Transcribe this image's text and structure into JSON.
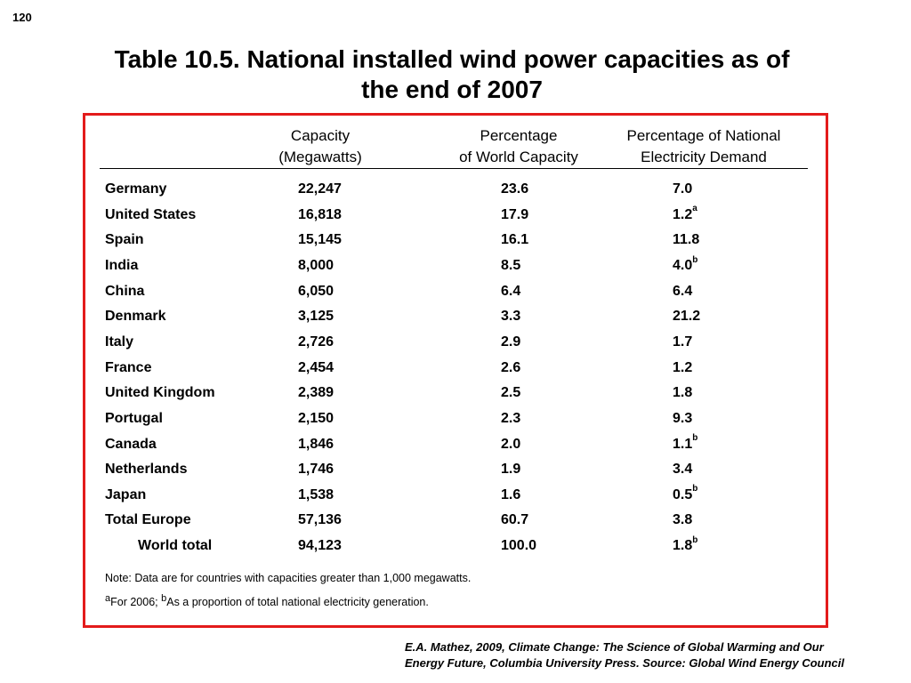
{
  "page_number": "120",
  "title_line1": "Table 10.5.  National installed wind power capacities as of",
  "title_line2": "the end of 2007",
  "headers": {
    "capacity_line1": "Capacity",
    "capacity_line2": "(Megawatts)",
    "percentage_line1": "Percentage",
    "percentage_line2": "of World Capacity",
    "national_line1": "Percentage of National",
    "national_line2": "Electricity Demand"
  },
  "rows": [
    {
      "country": "Germany",
      "capacity": "22,247",
      "world_pct": "23.6",
      "national_pct": "7.0",
      "footnote": ""
    },
    {
      "country": "United States",
      "capacity": "16,818",
      "world_pct": "17.9",
      "national_pct": "1.2",
      "footnote": "a"
    },
    {
      "country": "Spain",
      "capacity": "15,145",
      "world_pct": "16.1",
      "national_pct": "11.8",
      "footnote": ""
    },
    {
      "country": "India",
      "capacity": "8,000",
      "world_pct": "8.5",
      "national_pct": "4.0",
      "footnote": "b"
    },
    {
      "country": "China",
      "capacity": "6,050",
      "world_pct": "6.4",
      "national_pct": "6.4",
      "footnote": ""
    },
    {
      "country": "Denmark",
      "capacity": "3,125",
      "world_pct": "3.3",
      "national_pct": "21.2",
      "footnote": ""
    },
    {
      "country": "Italy",
      "capacity": "2,726",
      "world_pct": "2.9",
      "national_pct": "1.7",
      "footnote": ""
    },
    {
      "country": "France",
      "capacity": "2,454",
      "world_pct": "2.6",
      "national_pct": "1.2",
      "footnote": ""
    },
    {
      "country": "United Kingdom",
      "capacity": "2,389",
      "world_pct": "2.5",
      "national_pct": "1.8",
      "footnote": ""
    },
    {
      "country": "Portugal",
      "capacity": "2,150",
      "world_pct": "2.3",
      "national_pct": "9.3",
      "footnote": ""
    },
    {
      "country": "Canada",
      "capacity": "1,846",
      "world_pct": "2.0",
      "national_pct": "1.1",
      "footnote": "b"
    },
    {
      "country": "Netherlands",
      "capacity": "1,746",
      "world_pct": "1.9",
      "national_pct": "3.4",
      "footnote": ""
    },
    {
      "country": "Japan",
      "capacity": "1,538",
      "world_pct": "1.6",
      "national_pct": "0.5",
      "footnote": "b"
    },
    {
      "country": "Total Europe",
      "capacity": "57,136",
      "world_pct": "60.7",
      "national_pct": "3.8",
      "footnote": ""
    },
    {
      "country": "World total",
      "capacity": "94,123",
      "world_pct": "100.0",
      "national_pct": "1.8",
      "footnote": "b"
    }
  ],
  "note": "Note: Data are for countries with capacities greater than 1,000 megawatts.",
  "footnote_a_marker": "a",
  "footnote_a_text": "For 2006; ",
  "footnote_b_marker": "b",
  "footnote_b_text": "As a proportion of total national electricity generation.",
  "credit_line1": "E.A. Mathez, 2009, Climate Change: The Science of Global Warming and Our",
  "credit_line2": "Energy Future, Columbia University Press.  Source: Global Wind Energy Council",
  "colors": {
    "frame": "#e31b1b",
    "text": "#000000",
    "background": "#ffffff"
  }
}
